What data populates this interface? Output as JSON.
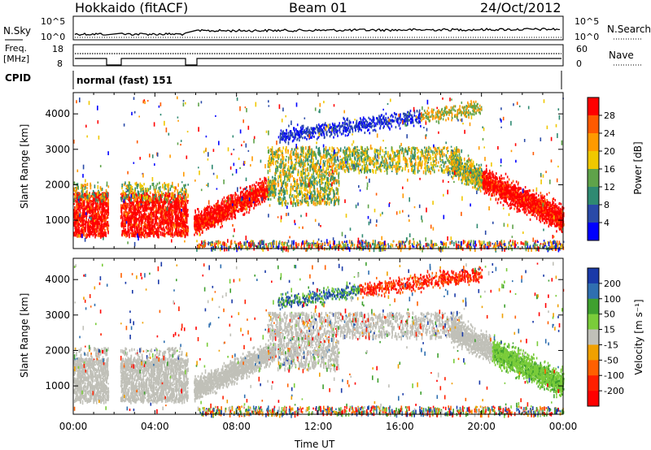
{
  "header": {
    "station": "Hokkaido (fitACF)",
    "beam": "Beam 01",
    "date": "24/Oct/2012"
  },
  "top_panel": {
    "left_label": "N.Sky",
    "right_label": "N.Search",
    "left_ticks": [
      "10^5",
      "10^0"
    ],
    "right_ticks": [
      "10^5",
      "10^0"
    ]
  },
  "freq_panel": {
    "left_label_1": "Freq.",
    "left_label_2": "[MHz]",
    "right_label": "Nave",
    "left_ticks": [
      "18",
      "8"
    ],
    "right_ticks": [
      "60",
      "0"
    ]
  },
  "cpid": {
    "label": "CPID",
    "text": "normal (fast) 151"
  },
  "chart_data": [
    {
      "type": "heatmap",
      "ylabel": "Slant Range [km]",
      "ylim": [
        200,
        4600
      ],
      "yticks": [
        "1000",
        "2000",
        "3000",
        "4000"
      ],
      "colorbar": {
        "label": "Power [dB]",
        "ticks": [
          "28",
          "24",
          "20",
          "16",
          "12",
          "8",
          "4"
        ],
        "colors": [
          "#ff0000",
          "#ff5a00",
          "#ff9a00",
          "#f0c800",
          "#5fa34a",
          "#2f8a72",
          "#2a4aa8",
          "#0000ff"
        ]
      }
    },
    {
      "type": "heatmap",
      "ylabel": "Slant Range [km]",
      "ylim": [
        200,
        4600
      ],
      "yticks": [
        "1000",
        "2000",
        "3000",
        "4000"
      ],
      "colorbar": {
        "label": "Velocity [m s⁻¹]",
        "ticks": [
          "200",
          "100",
          "50",
          "15",
          "-15",
          "-50",
          "-100",
          "-200"
        ],
        "colors": [
          "#1a3aa8",
          "#2f6fb0",
          "#3fa02f",
          "#7acc3a",
          "#c0c0b8",
          "#f0a000",
          "#ff6000",
          "#ff2000",
          "#ff0000"
        ]
      }
    }
  ],
  "x_axis": {
    "ticks": [
      "00:00",
      "04:00",
      "08:00",
      "12:00",
      "16:00",
      "20:00",
      "00:00"
    ],
    "label": "Time UT"
  }
}
